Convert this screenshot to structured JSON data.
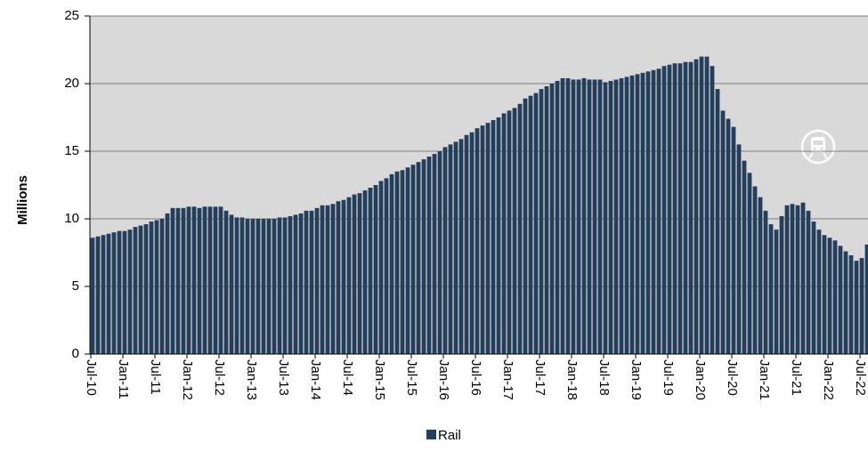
{
  "chart_data": {
    "type": "bar",
    "y_label": "Millions",
    "categories": [
      "Jul-10",
      null,
      null,
      null,
      null,
      null,
      "Jan-11",
      null,
      null,
      null,
      null,
      null,
      "Jul-11",
      null,
      null,
      null,
      null,
      null,
      "Jan-12",
      null,
      null,
      null,
      null,
      null,
      "Jul-12",
      null,
      null,
      null,
      null,
      null,
      "Jan-13",
      null,
      null,
      null,
      null,
      null,
      "Jul-13",
      null,
      null,
      null,
      null,
      null,
      "Jan-14",
      null,
      null,
      null,
      null,
      null,
      "Jul-14",
      null,
      null,
      null,
      null,
      null,
      "Jan-15",
      null,
      null,
      null,
      null,
      null,
      "Jul-15",
      null,
      null,
      null,
      null,
      null,
      "Jan-16",
      null,
      null,
      null,
      null,
      null,
      "Jul-16",
      null,
      null,
      null,
      null,
      null,
      "Jan-17",
      null,
      null,
      null,
      null,
      null,
      "Jul-17",
      null,
      null,
      null,
      null,
      null,
      "Jan-18",
      null,
      null,
      null,
      null,
      null,
      "Jul-18",
      null,
      null,
      null,
      null,
      null,
      "Jan-19",
      null,
      null,
      null,
      null,
      null,
      "Jul-19",
      null,
      null,
      null,
      null,
      null,
      "Jan-20",
      null,
      null,
      null,
      null,
      null,
      "Jul-20",
      null,
      null,
      null,
      null,
      null,
      "Jan-21",
      null,
      null,
      null,
      null,
      null,
      "Jul-21",
      null,
      null,
      null,
      null,
      null,
      "Jan-22",
      null,
      null,
      null,
      null,
      null,
      "Jul-22",
      null
    ],
    "series": [
      {
        "name": "Rail",
        "color": "#243f5c",
        "values": [
          8.6,
          8.7,
          8.8,
          8.9,
          9.0,
          9.1,
          9.1,
          9.2,
          9.4,
          9.5,
          9.6,
          9.8,
          9.9,
          10.0,
          10.4,
          10.8,
          10.8,
          10.8,
          10.9,
          10.9,
          10.8,
          10.9,
          10.9,
          10.9,
          10.9,
          10.6,
          10.3,
          10.1,
          10.1,
          10.0,
          10.0,
          10.0,
          10.0,
          10.0,
          10.0,
          10.1,
          10.1,
          10.2,
          10.3,
          10.4,
          10.6,
          10.6,
          10.8,
          11.0,
          11.0,
          11.1,
          11.3,
          11.4,
          11.6,
          11.8,
          11.9,
          12.1,
          12.3,
          12.5,
          12.8,
          13.0,
          13.3,
          13.5,
          13.6,
          13.8,
          14.0,
          14.2,
          14.4,
          14.6,
          14.8,
          15.0,
          15.3,
          15.5,
          15.7,
          15.9,
          16.2,
          16.4,
          16.7,
          16.9,
          17.1,
          17.3,
          17.5,
          17.8,
          18.0,
          18.2,
          18.5,
          18.9,
          19.1,
          19.3,
          19.6,
          19.8,
          20.0,
          20.2,
          20.4,
          20.4,
          20.3,
          20.3,
          20.4,
          20.3,
          20.3,
          20.3,
          20.1,
          20.2,
          20.3,
          20.4,
          20.5,
          20.6,
          20.7,
          20.8,
          20.9,
          21.0,
          21.1,
          21.3,
          21.4,
          21.5,
          21.5,
          21.6,
          21.6,
          21.8,
          22.0,
          22.0,
          21.3,
          19.6,
          18.0,
          17.4,
          16.8,
          15.5,
          14.3,
          13.4,
          12.4,
          11.6,
          10.6,
          9.6,
          9.2,
          10.2,
          11.0,
          11.1,
          11.0,
          11.2,
          10.6,
          9.8,
          9.2,
          8.8,
          8.6,
          8.4,
          8.0,
          7.6,
          7.3,
          6.9,
          7.1,
          8.1
        ]
      }
    ],
    "ylim": [
      0,
      25
    ],
    "yticks": [
      0,
      5,
      10,
      15,
      20,
      25
    ],
    "grid": true,
    "legend": "bottom"
  }
}
